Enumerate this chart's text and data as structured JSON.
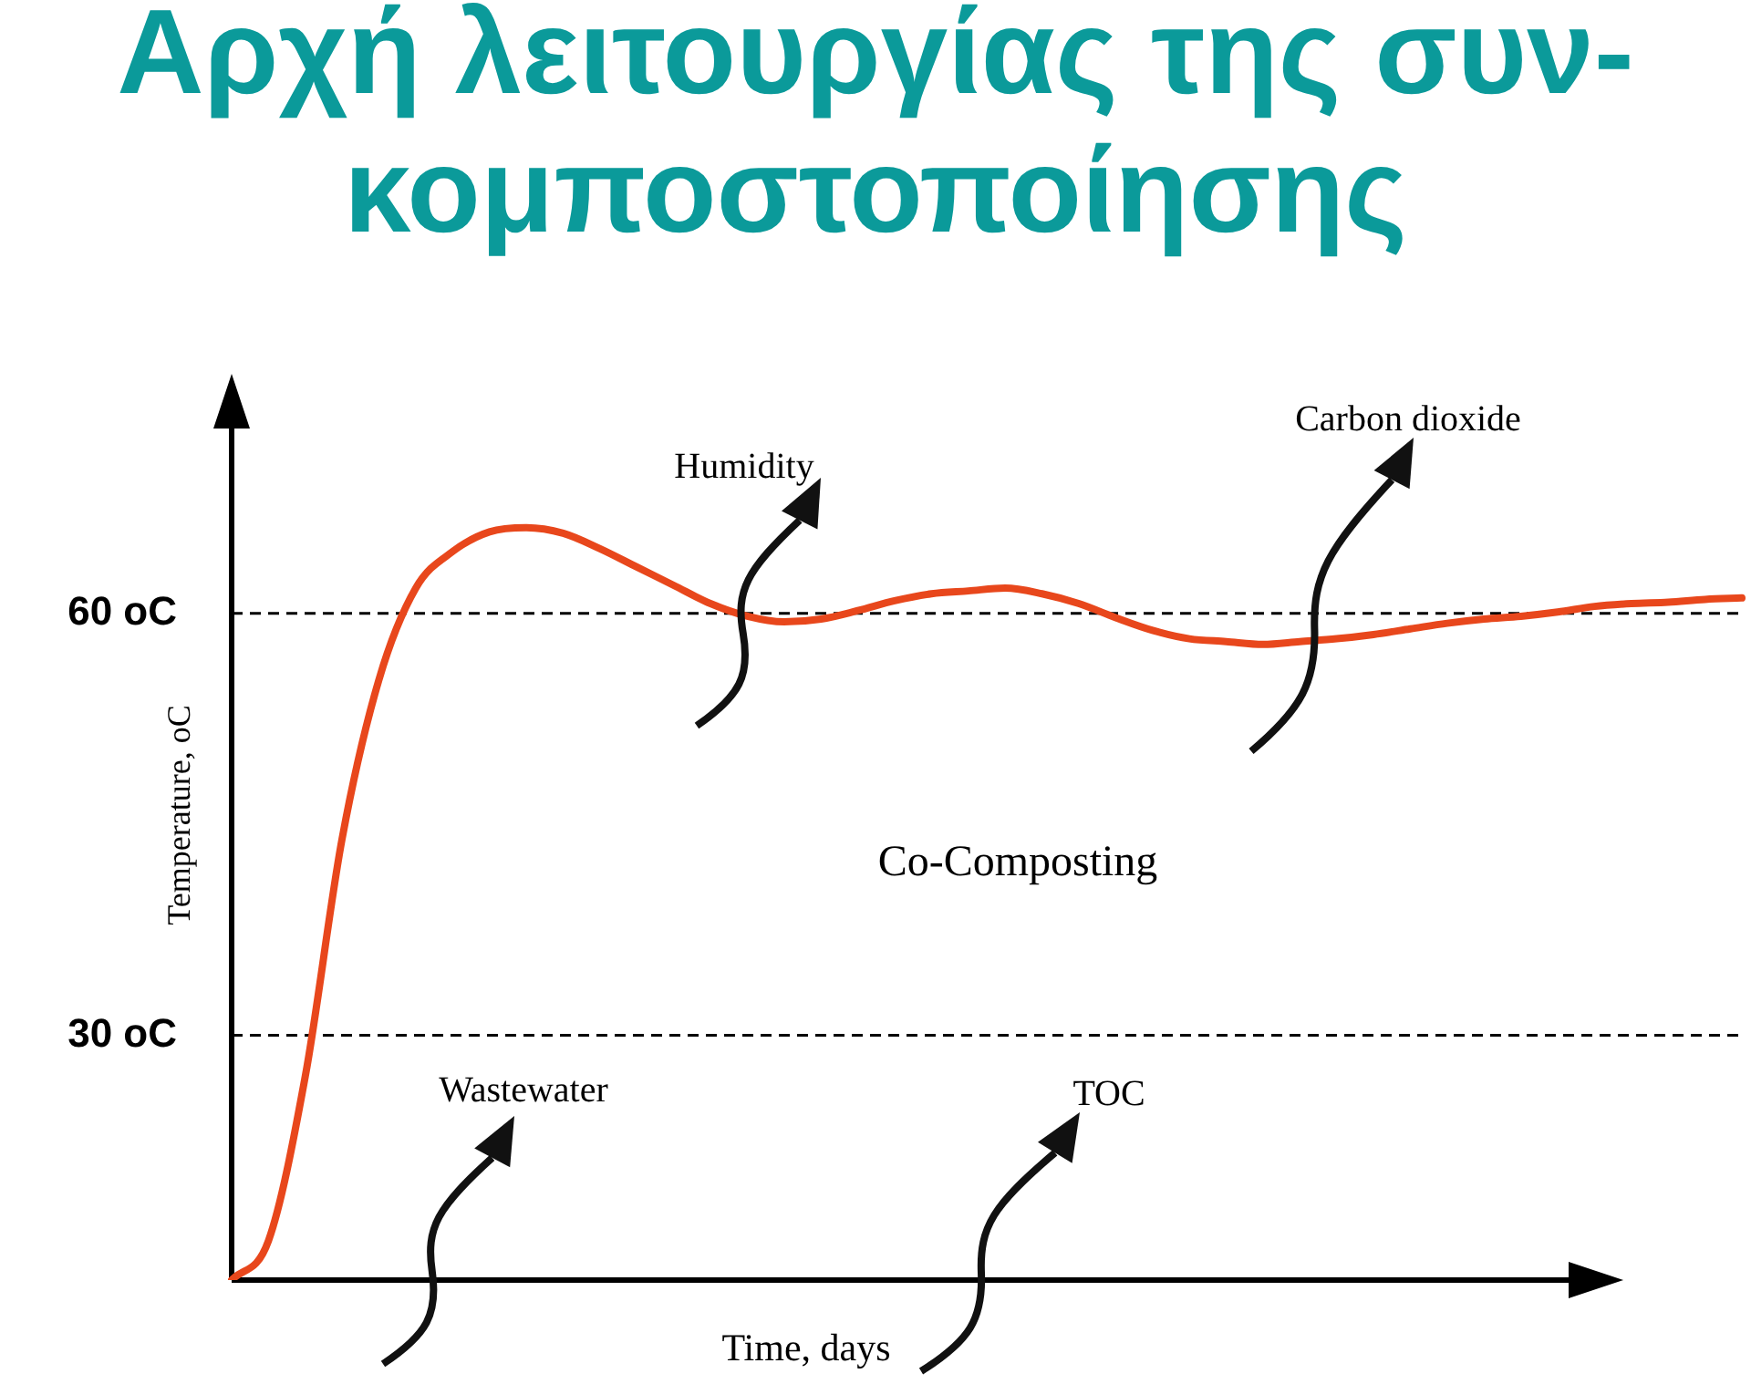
{
  "chart_data": {
    "type": "line",
    "title": "Αρχή λειτουργίας της συν-κομποστοποίησης",
    "xlabel": "Time, days",
    "ylabel": "Temperature, oC",
    "categories": [
      null,
      null,
      null,
      null,
      null,
      null,
      null,
      null,
      null,
      null,
      null,
      null,
      null,
      null,
      null,
      null,
      null,
      null,
      null,
      null,
      null,
      null,
      null,
      null,
      null,
      null,
      null,
      null,
      null,
      null,
      null,
      null,
      null,
      null,
      null,
      null,
      null,
      null,
      null,
      null,
      null,
      null
    ],
    "series": [
      {
        "color": "#e8471c",
        "values": [
          12.6,
          15.4,
          27.1,
          44.0,
          55.3,
          61.8,
          64.4,
          65.8,
          66.1,
          65.7,
          64.6,
          63.3,
          62.0,
          60.7,
          59.8,
          59.4,
          59.6,
          60.2,
          60.9,
          61.4,
          61.6,
          61.8,
          61.4,
          60.7,
          59.7,
          58.8,
          58.2,
          58.0,
          57.8,
          58.0,
          58.2,
          58.5,
          58.9,
          59.3,
          59.6,
          59.8,
          60.1,
          60.5,
          60.7,
          60.8,
          61.0,
          61.1
        ]
      }
    ],
    "ylim": [
      12.6,
      76
    ],
    "yticks": [
      {
        "value": 60,
        "label": "60 oC"
      },
      {
        "value": 30,
        "label": "30 oC"
      }
    ],
    "ref_lines": [
      {
        "axis": "y",
        "value": 60,
        "color": "#000000",
        "line_style": "dashed"
      },
      {
        "axis": "y",
        "value": 30,
        "color": "#000000",
        "line_style": "dashed"
      }
    ],
    "marker": "none",
    "annotations": [
      "Humidity",
      "Carbon dioxide",
      "Co-Composting",
      "Wastewater",
      "TOC"
    ]
  }
}
